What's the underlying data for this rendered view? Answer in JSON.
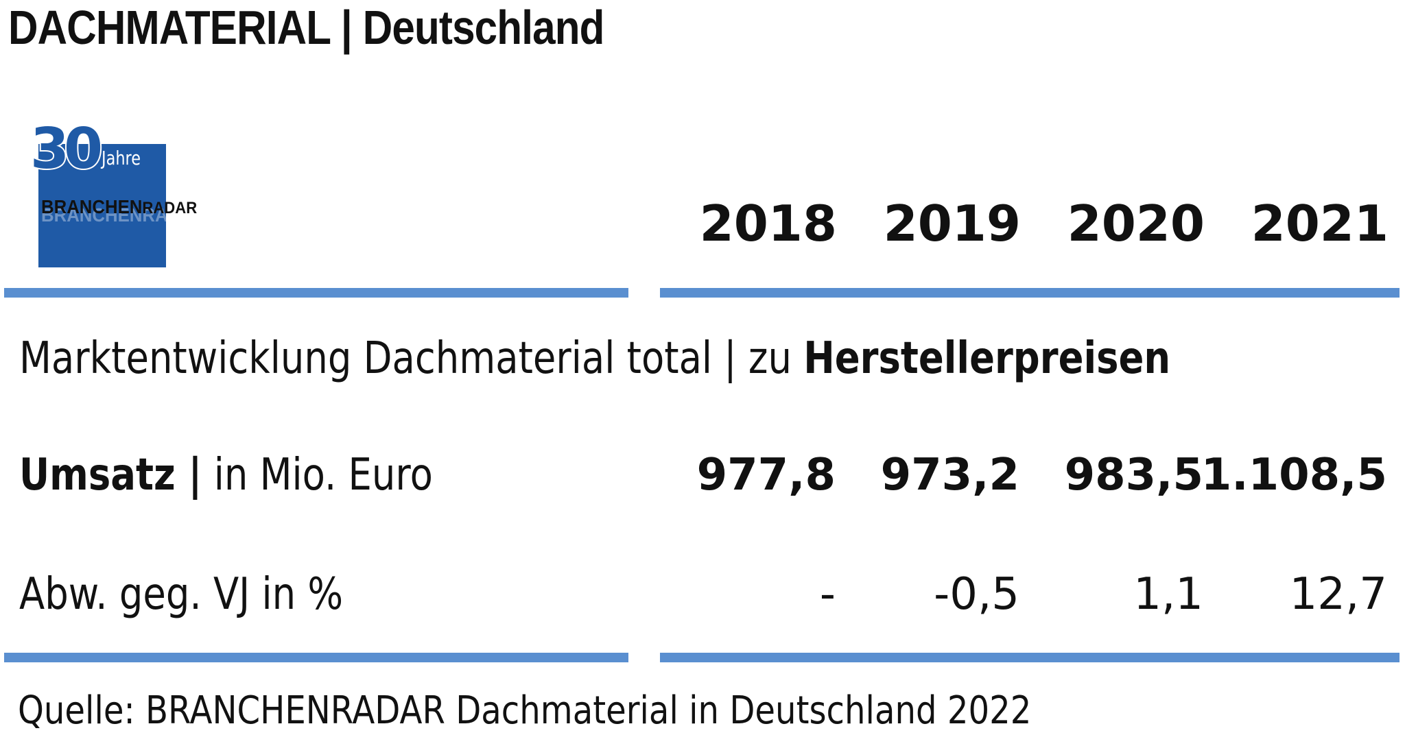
{
  "header": {
    "title": "DACHMATERIAL | Deutschland"
  },
  "logo": {
    "number": "30",
    "jahre": "Jahre",
    "brand_part1": "BRANCHEN",
    "brand_part2": "RADAR",
    "color": "#1f5aa6"
  },
  "accent_color": "#5a8fd0",
  "chart_data": {
    "type": "table",
    "title": "Marktentwicklung Dachmaterial total | zu Herstellerpreisen",
    "title_regular": "Marktentwicklung Dachmaterial total | zu ",
    "title_bold": "Herstellerpreisen",
    "columns": [
      "2018",
      "2019",
      "2020",
      "2021"
    ],
    "rows": [
      {
        "label_bold": "Umsatz |",
        "label_regular": " in Mio. Euro",
        "values": [
          "977,8",
          "973,2",
          "983,5",
          "1.108,5"
        ],
        "numeric": [
          977.8,
          973.2,
          983.5,
          1108.5
        ]
      },
      {
        "label": "Abw. geg. VJ in %",
        "values": [
          "-",
          "-0,5",
          "1,1",
          "12,7"
        ],
        "numeric": [
          null,
          -0.5,
          1.1,
          12.7
        ]
      }
    ]
  },
  "source": "Quelle: BRANCHENRADAR Dachmaterial in Deutschland 2022"
}
